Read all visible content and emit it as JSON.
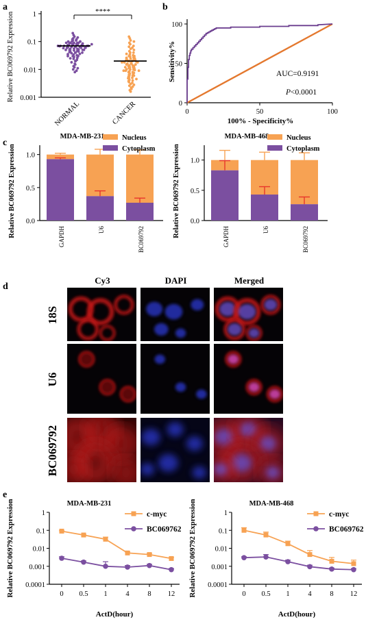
{
  "panel_letters": {
    "a": "a",
    "b": "b",
    "c": "c",
    "d": "d",
    "e": "e"
  },
  "colors": {
    "purple": "#7B4FA0",
    "orange": "#F7A253",
    "red_err": "#E8352B",
    "roc_line": "#6A3C8E",
    "diag_line": "#E4782E"
  },
  "chart_data": [
    {
      "id": "a",
      "type": "scatter",
      "ylabel": "Relative BC069792 Expression",
      "yscale": "log",
      "ylim": [
        0.001,
        1
      ],
      "yticks": [
        "1",
        "0.1",
        "0.01",
        "0.001"
      ],
      "categories": [
        "NORMAL",
        "CANCER"
      ],
      "series": [
        {
          "category": "NORMAL",
          "median": 0.07,
          "points": [
            0.2,
            0.17,
            0.15,
            0.14,
            0.13,
            0.12,
            0.12,
            0.11,
            0.11,
            0.1,
            0.1,
            0.1,
            0.09,
            0.09,
            0.09,
            0.09,
            0.085,
            0.085,
            0.08,
            0.08,
            0.08,
            0.08,
            0.075,
            0.075,
            0.075,
            0.07,
            0.07,
            0.07,
            0.07,
            0.07,
            0.068,
            0.066,
            0.065,
            0.065,
            0.064,
            0.062,
            0.06,
            0.06,
            0.06,
            0.058,
            0.056,
            0.055,
            0.055,
            0.052,
            0.05,
            0.05,
            0.05,
            0.048,
            0.046,
            0.045,
            0.044,
            0.042,
            0.04,
            0.04,
            0.038,
            0.036,
            0.035,
            0.034,
            0.032,
            0.03,
            0.03,
            0.028,
            0.026,
            0.025,
            0.024,
            0.022,
            0.02,
            0.02,
            0.018,
            0.016,
            0.015,
            0.013,
            0.012,
            0.011,
            0.01,
            0.009,
            0.008,
            0.1,
            0.09,
            0.08,
            0.07,
            0.06,
            0.05,
            0.04,
            0.03
          ]
        },
        {
          "category": "CANCER",
          "median": 0.02,
          "points": [
            0.15,
            0.13,
            0.11,
            0.1,
            0.09,
            0.08,
            0.07,
            0.065,
            0.06,
            0.055,
            0.05,
            0.045,
            0.04,
            0.04,
            0.036,
            0.034,
            0.032,
            0.03,
            0.03,
            0.028,
            0.027,
            0.026,
            0.025,
            0.024,
            0.023,
            0.022,
            0.022,
            0.021,
            0.02,
            0.02,
            0.02,
            0.019,
            0.018,
            0.018,
            0.017,
            0.016,
            0.016,
            0.015,
            0.015,
            0.014,
            0.014,
            0.013,
            0.013,
            0.012,
            0.012,
            0.011,
            0.011,
            0.01,
            0.01,
            0.01,
            0.0095,
            0.009,
            0.009,
            0.0085,
            0.008,
            0.008,
            0.0075,
            0.007,
            0.007,
            0.0065,
            0.006,
            0.006,
            0.0055,
            0.005,
            0.005,
            0.0048,
            0.0045,
            0.0042,
            0.004,
            0.0038,
            0.0035,
            0.0033,
            0.003,
            0.0028,
            0.0026,
            0.0024,
            0.0022,
            0.002,
            0.0018,
            0.0016,
            0.025,
            0.018,
            0.012,
            0.009,
            0.006
          ]
        }
      ],
      "significance": "****"
    },
    {
      "id": "b",
      "type": "line",
      "ylabel": "Sensitivity%",
      "xlabel": "100% - Specificity%",
      "xlim": [
        0,
        100
      ],
      "ylim": [
        0,
        100
      ],
      "xticks": [
        "0",
        "50",
        "100"
      ],
      "yticks": [
        "100",
        "50",
        "0"
      ],
      "auc_text": "AUC=0.9191",
      "p_text_prefix": "P",
      "p_text_suffix": "<0.0001",
      "roc_x": [
        0,
        0,
        0.5,
        0.5,
        1,
        1,
        1.5,
        1.5,
        2,
        2,
        2.5,
        2.5,
        3,
        3,
        4,
        4,
        5,
        5,
        6,
        6,
        7,
        7,
        8,
        8,
        9,
        9,
        10,
        10,
        11,
        11,
        12,
        12,
        13,
        13,
        14,
        14,
        15,
        15,
        16,
        16,
        17,
        17,
        18,
        18,
        19,
        19,
        20,
        20,
        22,
        22,
        25,
        25,
        30,
        30,
        35,
        35,
        40,
        40,
        50,
        50,
        60,
        60,
        70,
        70,
        80,
        80,
        90,
        90,
        100
      ],
      "roc_y": [
        0,
        30,
        30,
        45,
        45,
        55,
        55,
        60,
        60,
        63,
        63,
        66,
        66,
        68,
        68,
        70,
        70,
        72,
        72,
        74,
        74,
        76,
        76,
        78,
        78,
        80,
        80,
        82,
        82,
        84,
        84,
        86,
        86,
        88,
        88,
        89,
        89,
        90,
        90,
        91,
        91,
        92,
        92,
        93,
        93,
        94,
        94,
        95,
        95,
        95,
        95,
        95,
        95,
        96,
        96,
        96,
        96,
        96,
        96,
        97,
        97,
        97,
        97,
        98,
        98,
        98,
        98,
        99,
        100
      ],
      "diag_x": [
        0,
        100
      ],
      "diag_y": [
        0,
        100
      ]
    },
    {
      "id": "c1",
      "type": "bar",
      "title": "MDA-MB-231",
      "ylabel": "Relative BC069792 Expression",
      "ylim": [
        0,
        1.1
      ],
      "yticks": [
        "0.0",
        "0.5",
        "1.0"
      ],
      "categories": [
        "GAPDH",
        "U6",
        "BC069792"
      ],
      "legend": [
        "Nucleus",
        "Cytoplasm"
      ],
      "series": [
        {
          "name": "Cytoplasm",
          "values": [
            0.93,
            0.37,
            0.27
          ],
          "errors": [
            0.02,
            0.08,
            0.07
          ]
        },
        {
          "name": "Nucleus",
          "values": [
            0.07,
            0.63,
            0.73
          ],
          "errors": [
            0.02,
            0.08,
            0.07
          ]
        }
      ]
    },
    {
      "id": "c2",
      "type": "bar",
      "title": "MDA-MB-468",
      "ylabel": "Relative BC069792 Expression",
      "ylim": [
        0,
        1.2
      ],
      "yticks": [
        "0.0",
        "0.5",
        "1.0"
      ],
      "categories": [
        "GAPDH",
        "U6",
        "BC069792"
      ],
      "legend": [
        "Nucleus",
        "Cytoplasm"
      ],
      "series": [
        {
          "name": "Cytoplasm",
          "values": [
            0.83,
            0.43,
            0.27
          ],
          "errors": [
            0.16,
            0.13,
            0.12
          ]
        },
        {
          "name": "Nucleus",
          "values": [
            0.17,
            0.57,
            0.73
          ],
          "errors": [
            0.16,
            0.13,
            0.12
          ]
        }
      ]
    },
    {
      "id": "e1",
      "type": "line",
      "title": "MDA-MB-231",
      "ylabel": "Relative BC069792 Expression",
      "xlabel": "ActD(hour)",
      "yscale": "log",
      "ylim": [
        0.0001,
        1
      ],
      "yticks": [
        "1",
        "0.1",
        "0.01",
        "0.001",
        "0.0001"
      ],
      "categories": [
        "0",
        "0.5",
        "1",
        "4",
        "8",
        "12"
      ],
      "series": [
        {
          "name": "c-myc",
          "values": [
            0.09,
            0.055,
            0.032,
            0.0055,
            0.0045,
            0.0027
          ],
          "errors_up": [
            0.005,
            0.004,
            0.01,
            0.0008,
            0.0006,
            0.0004
          ]
        },
        {
          "name": "BC069762",
          "values": [
            0.0028,
            0.0017,
            0.001,
            0.0009,
            0.0011,
            0.00065
          ],
          "errors_up": [
            0.0006,
            0.0003,
            0.0008,
            0.0002,
            0.0002,
            0.0001
          ]
        }
      ]
    },
    {
      "id": "e2",
      "type": "line",
      "title": "MDA-MB-468",
      "ylabel": "Relative BC069792 Expression",
      "xlabel": "ActD(hour)",
      "yscale": "log",
      "ylim": [
        0.0001,
        1
      ],
      "yticks": [
        "1",
        "0.1",
        "0.01",
        "0.001",
        "0.0001"
      ],
      "categories": [
        "0",
        "0.5",
        "1",
        "4",
        "8",
        "12"
      ],
      "series": [
        {
          "name": "c-myc",
          "values": [
            0.1,
            0.055,
            0.018,
            0.0045,
            0.0019,
            0.0014
          ],
          "errors_up": [
            0.04,
            0.025,
            0.007,
            0.003,
            0.0012,
            0.0008
          ]
        },
        {
          "name": "BC069762",
          "values": [
            0.003,
            0.0033,
            0.0018,
            0.00095,
            0.0007,
            0.00065
          ],
          "errors_up": [
            0.0004,
            0.0012,
            0.0004,
            0.0002,
            0.0001,
            0.0001
          ]
        }
      ]
    }
  ],
  "panel_d": {
    "columns": [
      "Cy3",
      "DAPI",
      "Merged"
    ],
    "rows": [
      "18S",
      "U6",
      "BC069792"
    ]
  }
}
